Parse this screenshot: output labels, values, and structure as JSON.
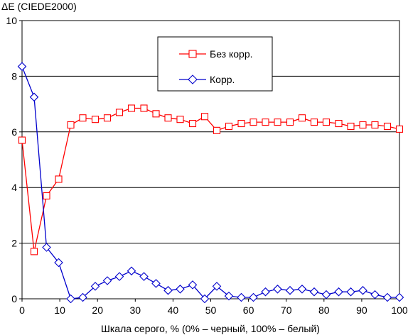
{
  "chart_data": {
    "type": "line",
    "title": "",
    "ylabel": "ΔE (CIEDE2000)",
    "xlabel": "Шкала серого, % (0% – черный, 100% – белый)",
    "xlim": [
      0,
      100
    ],
    "ylim": [
      0,
      10
    ],
    "xticks": [
      "0",
      "10",
      "20",
      "30",
      "40",
      "50",
      "60",
      "70",
      "80",
      "90",
      "100"
    ],
    "yticks": [
      "0",
      "2",
      "4",
      "6",
      "8",
      "10"
    ],
    "grid": "horizontal",
    "legend_position": "top-center",
    "series": [
      {
        "name": "Без корр.",
        "color": "#ff0000",
        "marker": "square",
        "x": [
          0,
          3.2,
          6.5,
          9.7,
          12.9,
          16.1,
          19.4,
          22.6,
          25.8,
          29.0,
          32.3,
          35.5,
          38.7,
          41.9,
          45.2,
          48.4,
          51.6,
          54.8,
          58.1,
          61.3,
          64.5,
          67.7,
          71.0,
          74.2,
          77.4,
          80.6,
          83.9,
          87.1,
          90.3,
          93.5,
          96.8,
          100
        ],
        "y": [
          5.7,
          1.7,
          3.7,
          4.3,
          6.25,
          6.5,
          6.45,
          6.5,
          6.7,
          6.85,
          6.85,
          6.65,
          6.5,
          6.45,
          6.3,
          6.55,
          6.05,
          6.2,
          6.3,
          6.35,
          6.35,
          6.35,
          6.35,
          6.5,
          6.35,
          6.35,
          6.3,
          6.2,
          6.25,
          6.25,
          6.2,
          6.1
        ]
      },
      {
        "name": "Корр.",
        "color": "#0000cc",
        "marker": "diamond",
        "x": [
          0,
          3.2,
          6.5,
          9.7,
          12.9,
          16.1,
          19.4,
          22.6,
          25.8,
          29.0,
          32.3,
          35.5,
          38.7,
          41.9,
          45.2,
          48.4,
          51.6,
          54.8,
          58.1,
          61.3,
          64.5,
          67.7,
          71.0,
          74.2,
          77.4,
          80.6,
          83.9,
          87.1,
          90.3,
          93.5,
          96.8,
          100
        ],
        "y": [
          8.35,
          7.25,
          1.85,
          1.3,
          0.0,
          0.05,
          0.45,
          0.65,
          0.8,
          1.0,
          0.8,
          0.55,
          0.3,
          0.35,
          0.5,
          0.0,
          0.45,
          0.1,
          0.05,
          0.05,
          0.25,
          0.35,
          0.3,
          0.35,
          0.25,
          0.15,
          0.25,
          0.25,
          0.3,
          0.15,
          0.05,
          0.05
        ]
      }
    ]
  }
}
